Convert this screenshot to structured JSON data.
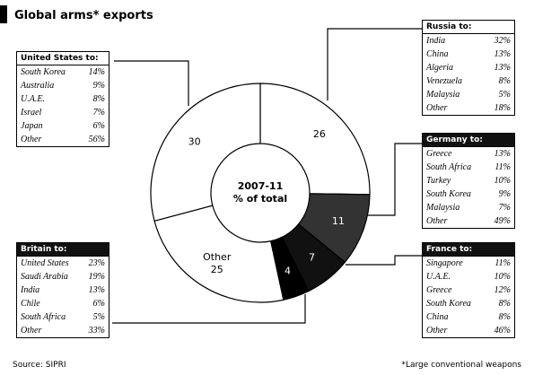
{
  "chart_data": {
    "type": "donut",
    "title": "Global arms* exports",
    "center_label": [
      "2007-11",
      "% of total"
    ],
    "categories": [
      null,
      null,
      null,
      null,
      "Other",
      null
    ],
    "values": [
      26,
      11,
      7,
      4,
      25,
      30
    ],
    "colors": [
      "#ffffff",
      "#333333",
      "#111111",
      "#000000",
      "#ffffff",
      "#ffffff"
    ]
  },
  "tables": [
    {
      "header": "United States to:",
      "rows": [
        [
          "South Korea",
          "14%"
        ],
        [
          "Australia",
          "9%"
        ],
        [
          "U.A.E.",
          "8%"
        ],
        [
          "Israel",
          "7%"
        ],
        [
          "Japan",
          "6%"
        ],
        [
          "Other",
          "56%"
        ]
      ]
    },
    {
      "header": "Russia to:",
      "rows": [
        [
          "India",
          "32%"
        ],
        [
          "China",
          "13%"
        ],
        [
          "Algeria",
          "13%"
        ],
        [
          "Venezuela",
          "8%"
        ],
        [
          "Malaysia",
          "5%"
        ],
        [
          "Other",
          "18%"
        ]
      ]
    },
    {
      "header": "Germany to:",
      "rows": [
        [
          "Greece",
          "13%"
        ],
        [
          "South Africa",
          "11%"
        ],
        [
          "Turkey",
          "10%"
        ],
        [
          "South Korea",
          "9%"
        ],
        [
          "Malaysia",
          "7%"
        ],
        [
          "Other",
          "49%"
        ]
      ]
    },
    {
      "header": "France to:",
      "rows": [
        [
          "Singapore",
          "11%"
        ],
        [
          "U.A.E.",
          "10%"
        ],
        [
          "Greece",
          "12%"
        ],
        [
          "South Korea",
          "8%"
        ],
        [
          "China",
          "8%"
        ],
        [
          "Other",
          "46%"
        ]
      ]
    },
    {
      "header": "Britain to:",
      "rows": [
        [
          "United States",
          "23%"
        ],
        [
          "Saudi Arabia",
          "19%"
        ],
        [
          "India",
          "13%"
        ],
        [
          "Chile",
          "6%"
        ],
        [
          "South Africa",
          "5%"
        ],
        [
          "Other",
          "33%"
        ]
      ]
    }
  ],
  "footer": {
    "source": "Source: SIPRI",
    "note": "*Large conventional weapons"
  }
}
